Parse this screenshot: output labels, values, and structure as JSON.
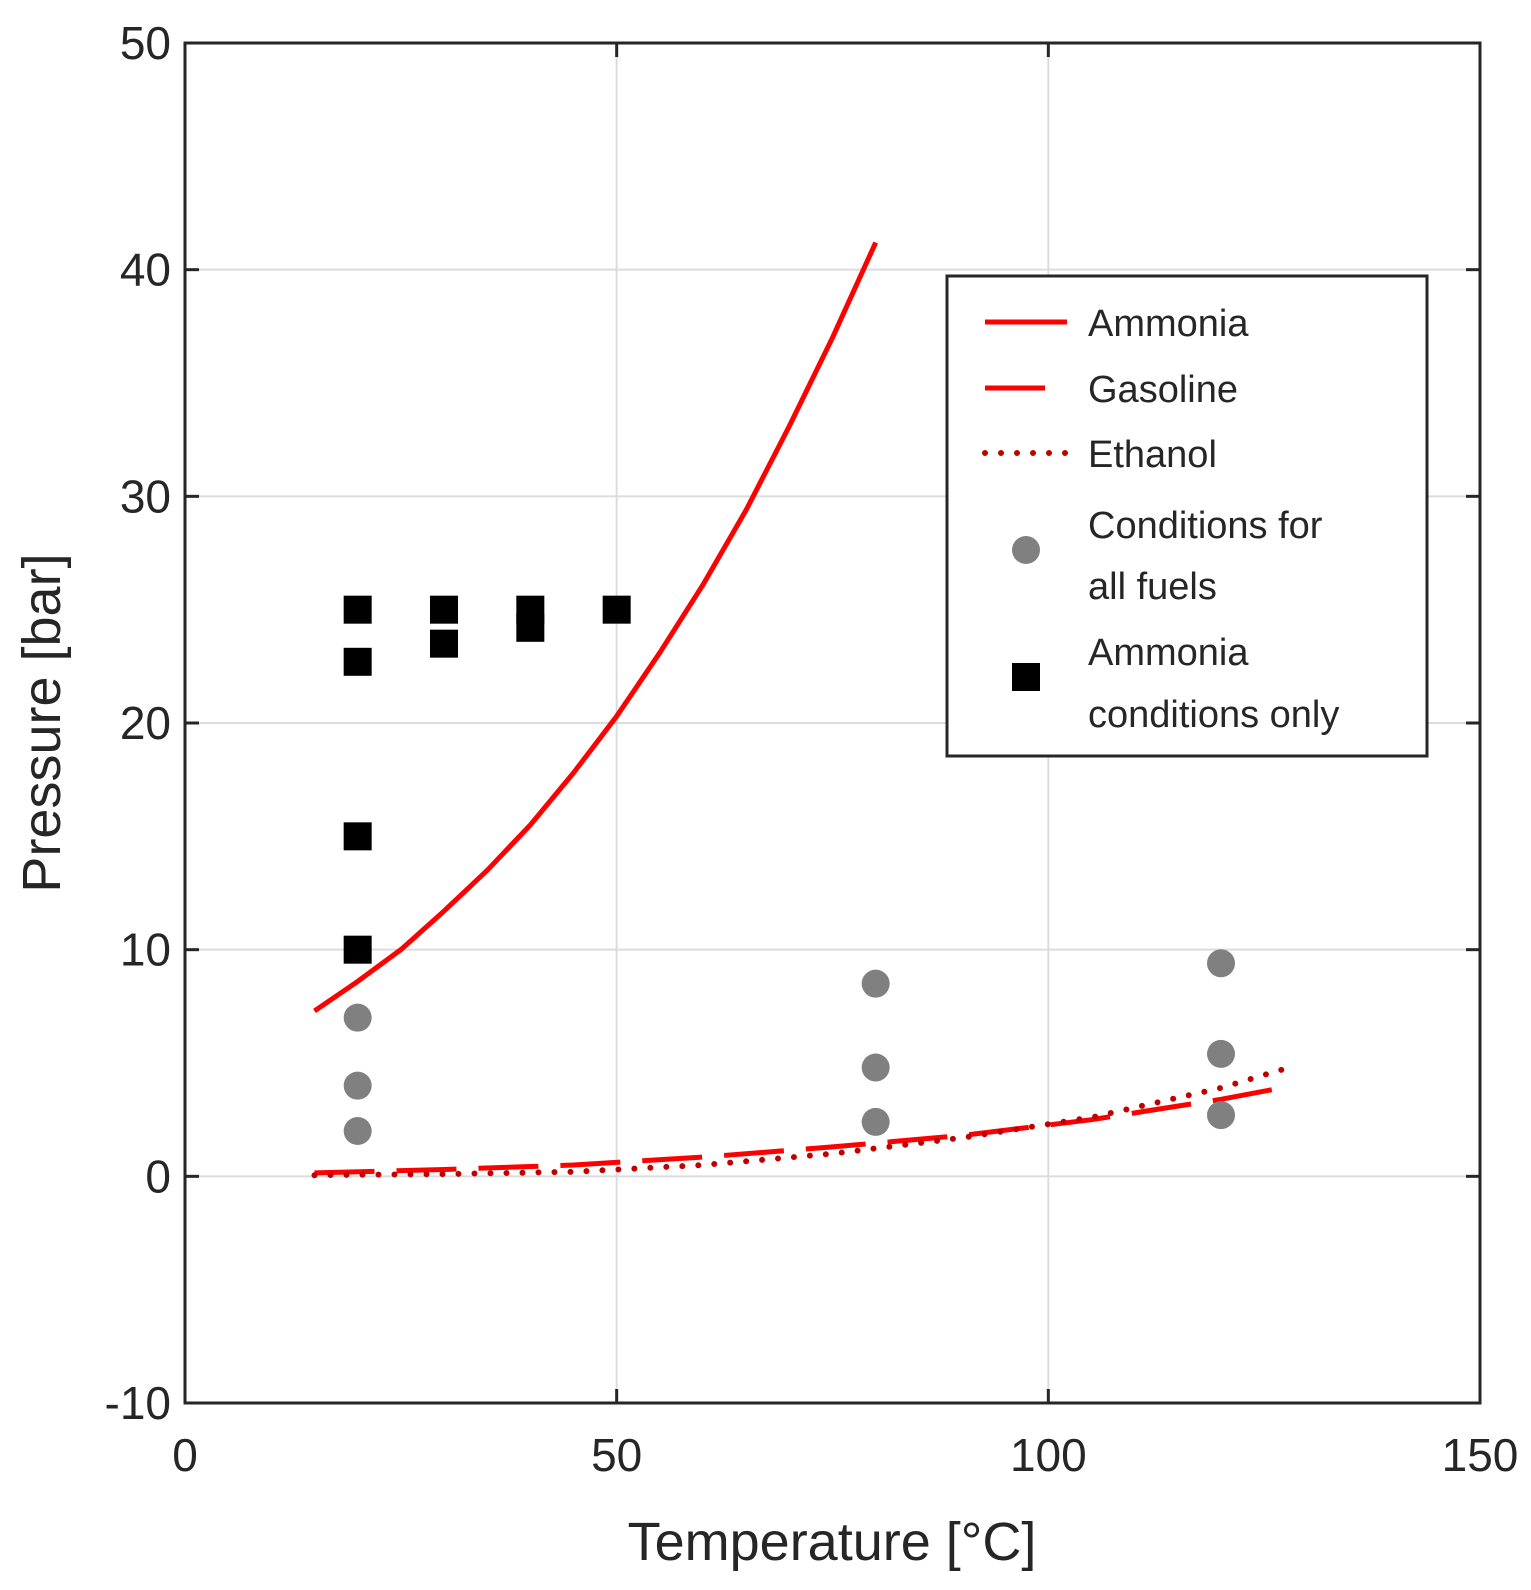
{
  "chart_data": {
    "type": "line",
    "xlabel": "Temperature [°C]",
    "ylabel": "Pressure [bar]",
    "xlim": [
      0,
      150
    ],
    "ylim": [
      -10,
      50
    ],
    "xticks": [
      "0",
      "50",
      "100",
      "150"
    ],
    "yticks": [
      "-10",
      "0",
      "10",
      "20",
      "30",
      "40",
      "50"
    ],
    "grid": true,
    "legend_position": "top-right",
    "series": [
      {
        "name": "Ammonia",
        "kind": "line",
        "style": "solid",
        "color": "#ff0000",
        "x": [
          15,
          20,
          25,
          30,
          35,
          40,
          45,
          50,
          55,
          60,
          65,
          70,
          75,
          80
        ],
        "y": [
          7.3,
          8.6,
          10.0,
          11.7,
          13.5,
          15.5,
          17.8,
          20.3,
          23.1,
          26.1,
          29.4,
          33.1,
          37.0,
          41.2
        ]
      },
      {
        "name": "Gasoline",
        "kind": "line",
        "style": "dashed",
        "color": "#ff0000",
        "x": [
          15,
          30,
          45,
          60,
          75,
          90,
          105,
          120,
          127
        ],
        "y": [
          0.15,
          0.3,
          0.5,
          0.85,
          1.3,
          1.8,
          2.5,
          3.4,
          3.9
        ]
      },
      {
        "name": "Ethanol",
        "kind": "line",
        "style": "dotted",
        "color": "#c00000",
        "x": [
          15,
          30,
          45,
          60,
          75,
          90,
          105,
          120,
          127
        ],
        "y": [
          0.05,
          0.1,
          0.2,
          0.5,
          1.0,
          1.7,
          2.6,
          3.9,
          4.7
        ]
      },
      {
        "name": "Conditions for all fuels",
        "kind": "scatter",
        "marker": "circle",
        "color": "#808080",
        "x": [
          20,
          20,
          20,
          80,
          80,
          80,
          120,
          120,
          120
        ],
        "y": [
          2,
          4,
          7,
          2.4,
          4.8,
          8.5,
          2.7,
          5.4,
          9.4
        ]
      },
      {
        "name": "Ammonia conditions only",
        "kind": "scatter",
        "marker": "square",
        "color": "#000000",
        "x": [
          20,
          20,
          20,
          20,
          30,
          30,
          40,
          40,
          50
        ],
        "y": [
          10,
          15,
          22.7,
          25,
          23.5,
          25,
          24.2,
          25,
          25
        ]
      }
    ],
    "legend": [
      {
        "lines": [
          "Ammonia"
        ]
      },
      {
        "lines": [
          "Gasoline"
        ]
      },
      {
        "lines": [
          "Ethanol"
        ]
      },
      {
        "lines": [
          "Conditions for",
          "all fuels"
        ]
      },
      {
        "lines": [
          "Ammonia",
          "conditions only"
        ]
      }
    ]
  }
}
